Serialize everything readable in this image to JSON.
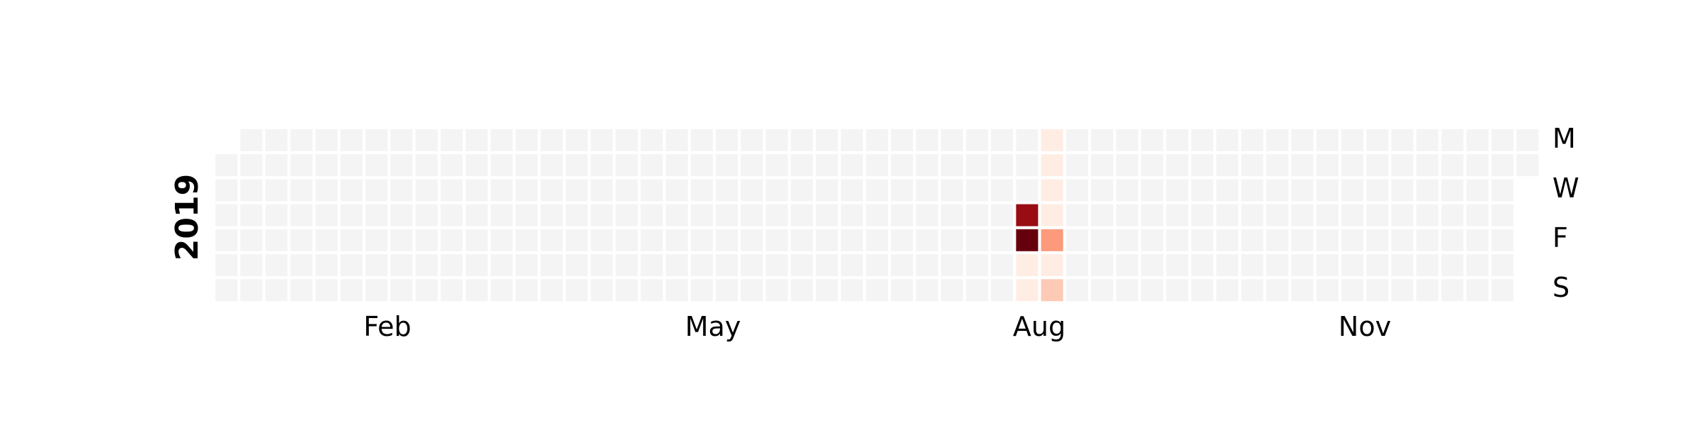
{
  "chart_data": {
    "type": "heatmap",
    "year": "2019",
    "month_labels": [
      "Feb",
      "May",
      "Aug",
      "Nov"
    ],
    "weekday_labels": [
      "M",
      "W",
      "F",
      "S"
    ],
    "weeks": 53,
    "days_per_week": 7,
    "first_day_offset": 1,
    "empty_color": "#f4f4f4",
    "colormap": "Reds",
    "values": [
      {
        "date": "2019-08-15",
        "value": 0.9
      },
      {
        "date": "2019-08-16",
        "value": 1.0
      },
      {
        "date": "2019-08-17",
        "value": 0.05
      },
      {
        "date": "2019-08-18",
        "value": 0.05
      },
      {
        "date": "2019-08-19",
        "value": 0.05
      },
      {
        "date": "2019-08-20",
        "value": 0.05
      },
      {
        "date": "2019-08-21",
        "value": 0.05
      },
      {
        "date": "2019-08-22",
        "value": 0.05
      },
      {
        "date": "2019-08-23",
        "value": 0.35
      },
      {
        "date": "2019-08-24",
        "value": 0.05
      },
      {
        "date": "2019-08-25",
        "value": 0.2
      }
    ],
    "xlabel": "",
    "ylabel": ""
  }
}
